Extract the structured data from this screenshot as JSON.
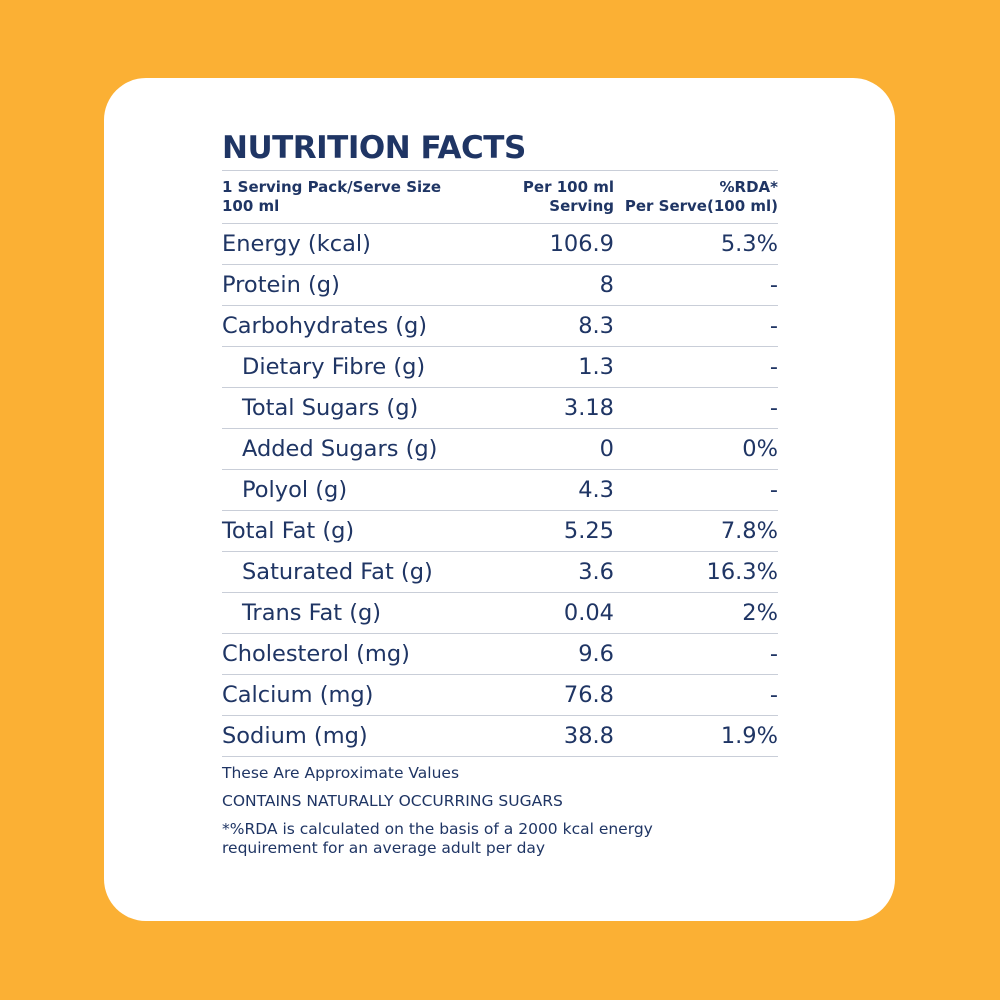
{
  "title": "NUTRITION FACTS",
  "header": {
    "col1": "1 Serving Pack/Serve Size\n100 ml",
    "col2": "Per 100 ml\nServing",
    "col3": "%RDA*\nPer Serve(100 ml)"
  },
  "rows": [
    {
      "label": "Energy (kcal)",
      "value": "106.9",
      "rda": "5.3%",
      "indent": false
    },
    {
      "label": "Protein (g)",
      "value": "8",
      "rda": "-",
      "indent": false
    },
    {
      "label": "Carbohydrates (g)",
      "value": "8.3",
      "rda": "-",
      "indent": false
    },
    {
      "label": "Dietary Fibre (g)",
      "value": "1.3",
      "rda": "-",
      "indent": true
    },
    {
      "label": "Total Sugars (g)",
      "value": "3.18",
      "rda": "-",
      "indent": true
    },
    {
      "label": "Added Sugars (g)",
      "value": "0",
      "rda": "0%",
      "indent": true
    },
    {
      "label": "Polyol (g)",
      "value": "4.3",
      "rda": "-",
      "indent": true
    },
    {
      "label": "Total Fat (g)",
      "value": "5.25",
      "rda": "7.8%",
      "indent": false
    },
    {
      "label": "Saturated Fat (g)",
      "value": "3.6",
      "rda": "16.3%",
      "indent": true
    },
    {
      "label": "Trans Fat (g)",
      "value": "0.04",
      "rda": "2%",
      "indent": true
    },
    {
      "label": "Cholesterol (mg)",
      "value": "9.6",
      "rda": "-",
      "indent": false
    },
    {
      "label": "Calcium (mg)",
      "value": "76.8",
      "rda": "-",
      "indent": false
    },
    {
      "label": "Sodium (mg)",
      "value": "38.8",
      "rda": "1.9%",
      "indent": false
    }
  ],
  "notes": {
    "approx": "These Are Approximate Values",
    "sugars": "CONTAINS NATURALLY OCCURRING SUGARS",
    "rda": "*%RDA is calculated on the basis of a 2000 kcal energy\nrequirement for an average adult per day"
  },
  "colors": {
    "background": "#FBB034",
    "card": "#FFFFFF",
    "text": "#1F3564",
    "divider": "#C9CED8"
  }
}
